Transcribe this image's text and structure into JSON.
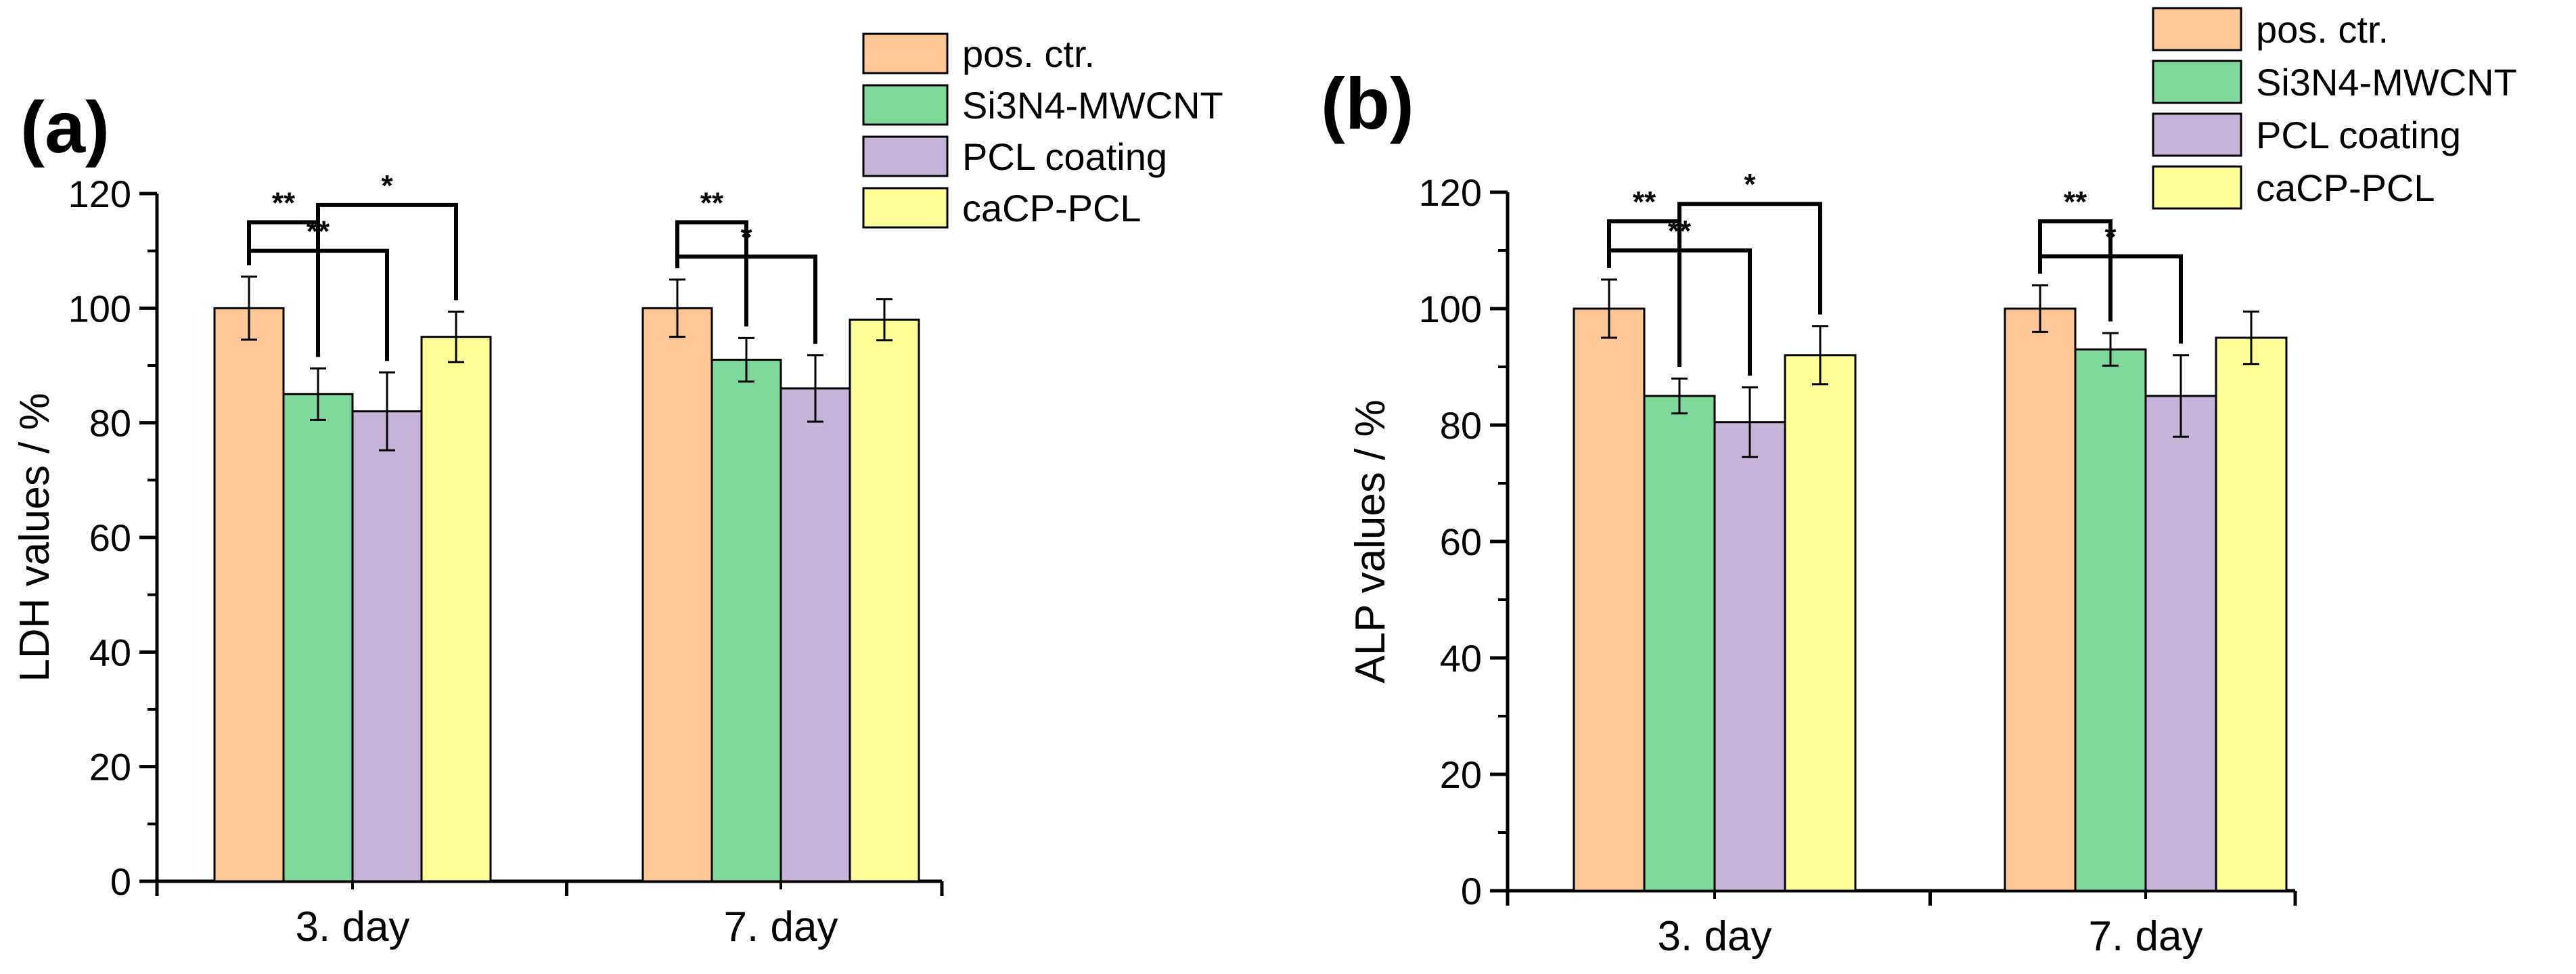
{
  "chart_data": [
    {
      "type": "bar",
      "panel_label": "(a)",
      "categories": [
        "3. day",
        "7. day"
      ],
      "series": [
        {
          "name": "pos. ctr.",
          "values": [
            100,
            100
          ],
          "errors": [
            5.5,
            5
          ]
        },
        {
          "name": "Si3N4-MWCNT",
          "values": [
            85,
            91
          ],
          "errors": [
            4.5,
            3.8
          ]
        },
        {
          "name": "PCL coating",
          "values": [
            82,
            86
          ],
          "errors": [
            6.8,
            5.8
          ]
        },
        {
          "name": "caCP-PCL",
          "values": [
            95,
            98
          ],
          "errors": [
            4.4,
            3.6
          ]
        }
      ],
      "ylabel": "LDH values / %",
      "xlabel": "",
      "ylim": [
        0,
        120
      ],
      "yticks": [
        0,
        20,
        40,
        60,
        80,
        100,
        120
      ],
      "legend_position": "top-right",
      "significance": [
        {
          "group": 0,
          "from_series": 0,
          "to_series": 1,
          "label": "**"
        },
        {
          "group": 0,
          "from_series": 0,
          "to_series": 2,
          "label": "**"
        },
        {
          "group": 0,
          "from_series": 1,
          "to_series": 3,
          "label": "*"
        },
        {
          "group": 1,
          "from_series": 0,
          "to_series": 1,
          "label": "**"
        },
        {
          "group": 1,
          "from_series": 0,
          "to_series": 2,
          "label": "*"
        }
      ]
    },
    {
      "type": "bar",
      "panel_label": "(b)",
      "categories": [
        "3. day",
        "7. day"
      ],
      "series": [
        {
          "name": "pos. ctr.",
          "values": [
            100,
            100
          ],
          "errors": [
            5,
            4
          ]
        },
        {
          "name": "Si3N4-MWCNT",
          "values": [
            85,
            93
          ],
          "errors": [
            3,
            2.8
          ]
        },
        {
          "name": "PCL coating",
          "values": [
            80.5,
            85
          ],
          "errors": [
            6,
            7
          ]
        },
        {
          "name": "caCP-PCL",
          "values": [
            92,
            95
          ],
          "errors": [
            5,
            4.5
          ]
        }
      ],
      "ylabel": "ALP values / %",
      "xlabel": "",
      "ylim": [
        0,
        120
      ],
      "yticks": [
        0,
        20,
        40,
        60,
        80,
        100,
        120
      ],
      "legend_position": "top-right",
      "significance": [
        {
          "group": 0,
          "from_series": 0,
          "to_series": 1,
          "label": "**"
        },
        {
          "group": 0,
          "from_series": 0,
          "to_series": 2,
          "label": "**"
        },
        {
          "group": 0,
          "from_series": 1,
          "to_series": 3,
          "label": "*"
        },
        {
          "group": 1,
          "from_series": 0,
          "to_series": 1,
          "label": "**"
        },
        {
          "group": 1,
          "from_series": 0,
          "to_series": 2,
          "label": "*"
        }
      ]
    }
  ],
  "colors": {
    "series": [
      "#FFC896",
      "#7FD99C",
      "#C8B4DA",
      "#FFFF99"
    ],
    "axis": "#000000"
  }
}
